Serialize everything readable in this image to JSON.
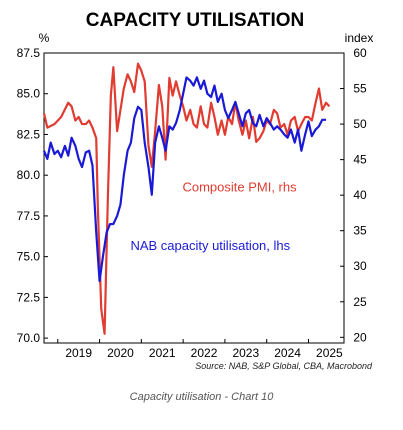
{
  "caption": "Capacity utilisation - Chart 10",
  "chart_data": {
    "type": "line",
    "title": "CAPACITY UTILISATION",
    "left_unit": "%",
    "right_unit": "index",
    "source": "Source: NAB, S&P Global, CBA, Macrobond",
    "left_axis": {
      "ticks": [
        "87.5",
        "85.0",
        "82.5",
        "80.0",
        "77.5",
        "75.0",
        "72.5",
        "70.0"
      ],
      "range": [
        69.7,
        87.5
      ]
    },
    "right_axis": {
      "ticks": [
        "60",
        "55",
        "50",
        "45",
        "40",
        "35",
        "30",
        "25",
        "20"
      ],
      "range": [
        19.2,
        60
      ]
    },
    "x_labels": [
      "2019",
      "2020",
      "2021",
      "2022",
      "2023",
      "2024",
      "2025"
    ],
    "x_range": [
      2018.67,
      2025.85
    ],
    "grid": false,
    "series": [
      {
        "name": "Composite PMI, rhs",
        "axis": "right",
        "color": "#e03c31",
        "points": [
          [
            2018.67,
            51.5
          ],
          [
            2018.75,
            49.5
          ],
          [
            2018.92,
            50.0
          ],
          [
            2019.08,
            51.0
          ],
          [
            2019.25,
            53.0
          ],
          [
            2019.33,
            52.5
          ],
          [
            2019.42,
            50.5
          ],
          [
            2019.5,
            51.0
          ],
          [
            2019.58,
            50.0
          ],
          [
            2019.67,
            50.0
          ],
          [
            2019.75,
            50.5
          ],
          [
            2019.83,
            49.5
          ],
          [
            2019.92,
            48.0
          ],
          [
            2019.96,
            38.0
          ],
          [
            2020.04,
            24.0
          ],
          [
            2020.12,
            20.5
          ],
          [
            2020.2,
            40.0
          ],
          [
            2020.27,
            54.0
          ],
          [
            2020.33,
            58.0
          ],
          [
            2020.42,
            49.0
          ],
          [
            2020.5,
            52.0
          ],
          [
            2020.58,
            55.0
          ],
          [
            2020.67,
            57.0
          ],
          [
            2020.75,
            56.0
          ],
          [
            2020.83,
            54.5
          ],
          [
            2020.92,
            58.5
          ],
          [
            2021.0,
            57.5
          ],
          [
            2021.08,
            56.0
          ],
          [
            2021.17,
            47.0
          ],
          [
            2021.25,
            44.0
          ],
          [
            2021.33,
            49.0
          ],
          [
            2021.42,
            55.5
          ],
          [
            2021.5,
            52.5
          ],
          [
            2021.58,
            45.0
          ],
          [
            2021.67,
            56.5
          ],
          [
            2021.75,
            54.0
          ],
          [
            2021.83,
            56.0
          ],
          [
            2021.92,
            54.0
          ],
          [
            2022.0,
            52.5
          ],
          [
            2022.08,
            50.5
          ],
          [
            2022.17,
            52.0
          ],
          [
            2022.25,
            50.0
          ],
          [
            2022.33,
            49.5
          ],
          [
            2022.42,
            52.5
          ],
          [
            2022.5,
            50.0
          ],
          [
            2022.58,
            49.5
          ],
          [
            2022.67,
            53.0
          ],
          [
            2022.75,
            51.0
          ],
          [
            2022.83,
            48.5
          ],
          [
            2022.92,
            50.5
          ],
          [
            2023.0,
            48.5
          ],
          [
            2023.08,
            51.0
          ],
          [
            2023.17,
            50.0
          ],
          [
            2023.25,
            53.0
          ],
          [
            2023.33,
            50.5
          ],
          [
            2023.42,
            48.5
          ],
          [
            2023.5,
            50.5
          ],
          [
            2023.58,
            48.0
          ],
          [
            2023.67,
            51.0
          ],
          [
            2023.75,
            47.5
          ],
          [
            2023.83,
            48.0
          ],
          [
            2023.92,
            49.0
          ],
          [
            2024.0,
            50.5
          ],
          [
            2024.08,
            50.0
          ],
          [
            2024.17,
            52.0
          ],
          [
            2024.25,
            51.5
          ],
          [
            2024.33,
            49.5
          ],
          [
            2024.42,
            50.0
          ],
          [
            2024.5,
            48.5
          ],
          [
            2024.58,
            50.5
          ],
          [
            2024.67,
            51.0
          ],
          [
            2024.75,
            49.0
          ],
          [
            2024.83,
            50.0
          ],
          [
            2024.92,
            51.0
          ],
          [
            2025.0,
            51.0
          ],
          [
            2025.08,
            50.5
          ],
          [
            2025.17,
            53.0
          ],
          [
            2025.25,
            55.0
          ],
          [
            2025.33,
            52.0
          ],
          [
            2025.42,
            53.0
          ],
          [
            2025.5,
            52.5
          ]
        ]
      },
      {
        "name": "NAB capacity utilisation, lhs",
        "axis": "left",
        "color": "#1a1ad6",
        "points": [
          [
            2018.67,
            81.5
          ],
          [
            2018.75,
            81.0
          ],
          [
            2018.83,
            82.0
          ],
          [
            2018.92,
            81.3
          ],
          [
            2019.0,
            81.5
          ],
          [
            2019.08,
            81.1
          ],
          [
            2019.17,
            81.8
          ],
          [
            2019.25,
            81.2
          ],
          [
            2019.33,
            82.3
          ],
          [
            2019.42,
            81.8
          ],
          [
            2019.5,
            81.0
          ],
          [
            2019.58,
            80.5
          ],
          [
            2019.67,
            81.4
          ],
          [
            2019.75,
            81.5
          ],
          [
            2019.83,
            80.6
          ],
          [
            2019.92,
            76.5
          ],
          [
            2020.0,
            73.5
          ],
          [
            2020.08,
            75.0
          ],
          [
            2020.17,
            76.5
          ],
          [
            2020.25,
            77.0
          ],
          [
            2020.33,
            77.0
          ],
          [
            2020.42,
            77.5
          ],
          [
            2020.5,
            78.2
          ],
          [
            2020.58,
            80.0
          ],
          [
            2020.67,
            81.5
          ],
          [
            2020.75,
            82.0
          ],
          [
            2020.83,
            83.5
          ],
          [
            2020.92,
            84.2
          ],
          [
            2021.0,
            84.0
          ],
          [
            2021.08,
            82.0
          ],
          [
            2021.17,
            80.5
          ],
          [
            2021.25,
            78.8
          ],
          [
            2021.33,
            82.0
          ],
          [
            2021.42,
            83.0
          ],
          [
            2021.5,
            82.3
          ],
          [
            2021.58,
            81.5
          ],
          [
            2021.67,
            83.0
          ],
          [
            2021.75,
            82.8
          ],
          [
            2021.83,
            83.2
          ],
          [
            2021.92,
            84.0
          ],
          [
            2022.0,
            85.0
          ],
          [
            2022.08,
            86.0
          ],
          [
            2022.17,
            85.8
          ],
          [
            2022.25,
            85.5
          ],
          [
            2022.33,
            86.0
          ],
          [
            2022.42,
            85.3
          ],
          [
            2022.5,
            85.8
          ],
          [
            2022.58,
            85.0
          ],
          [
            2022.67,
            84.8
          ],
          [
            2022.75,
            85.5
          ],
          [
            2022.83,
            84.5
          ],
          [
            2022.92,
            85.0
          ],
          [
            2023.0,
            84.0
          ],
          [
            2023.08,
            83.5
          ],
          [
            2023.17,
            84.0
          ],
          [
            2023.25,
            84.5
          ],
          [
            2023.33,
            83.8
          ],
          [
            2023.42,
            83.0
          ],
          [
            2023.5,
            83.8
          ],
          [
            2023.58,
            84.0
          ],
          [
            2023.67,
            83.2
          ],
          [
            2023.75,
            83.0
          ],
          [
            2023.83,
            83.7
          ],
          [
            2023.92,
            83.0
          ],
          [
            2024.0,
            83.5
          ],
          [
            2024.08,
            83.2
          ],
          [
            2024.17,
            82.8
          ],
          [
            2024.25,
            83.0
          ],
          [
            2024.33,
            82.8
          ],
          [
            2024.42,
            82.5
          ],
          [
            2024.5,
            82.3
          ],
          [
            2024.58,
            82.8
          ],
          [
            2024.67,
            82.0
          ],
          [
            2024.75,
            82.8
          ],
          [
            2024.83,
            81.5
          ],
          [
            2024.92,
            82.5
          ],
          [
            2025.0,
            83.3
          ],
          [
            2025.08,
            82.4
          ],
          [
            2025.17,
            82.8
          ],
          [
            2025.25,
            83.0
          ],
          [
            2025.33,
            83.4
          ],
          [
            2025.42,
            83.4
          ]
        ]
      }
    ],
    "annotations": [
      {
        "text": "Composite PMI, rhs",
        "color": "#e03c31",
        "x": 2023.35,
        "y_left": 79.0
      },
      {
        "text": "NAB capacity utilisation, lhs",
        "color": "#1a1ad6",
        "x": 2022.65,
        "y_left": 75.4
      }
    ]
  }
}
